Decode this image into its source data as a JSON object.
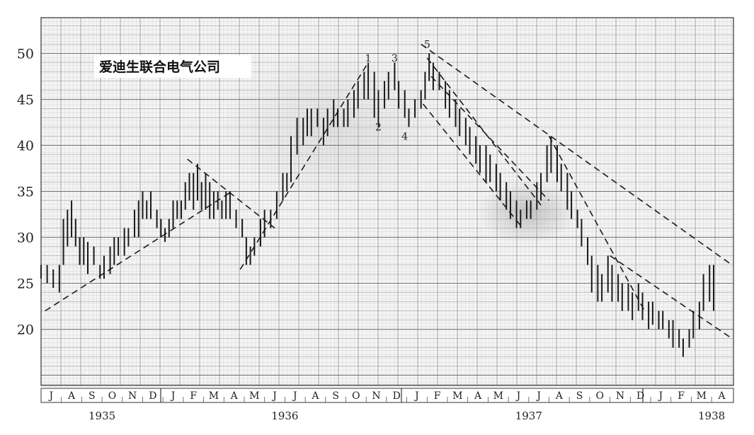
{
  "chart_data": {
    "type": "bar",
    "subtype": "high-low price bars",
    "title": "爱迪生联合电气公司",
    "ylim": [
      14,
      54
    ],
    "y_ticks": [
      20,
      25,
      30,
      35,
      40,
      45,
      50
    ],
    "x_month_labels": [
      "J",
      "A",
      "S",
      "O",
      "N",
      "D",
      "J",
      "F",
      "M",
      "A",
      "M",
      "J",
      "J",
      "A",
      "S",
      "O",
      "N",
      "D",
      "J",
      "F",
      "M",
      "A",
      "M",
      "J",
      "J",
      "A",
      "S",
      "O",
      "N",
      "D",
      "J",
      "F",
      "M",
      "A"
    ],
    "x_year_labels": [
      {
        "label": "1935",
        "month_index": 2.5
      },
      {
        "label": "1936",
        "month_index": 11.5
      },
      {
        "label": "1937",
        "month_index": 23.5
      },
      {
        "label": "1938",
        "month_index": 32.5
      }
    ],
    "bars": [
      [
        0.0,
        27,
        25.5
      ],
      [
        0.3,
        27,
        25
      ],
      [
        0.6,
        26.5,
        24.5
      ],
      [
        0.9,
        27,
        24
      ],
      [
        1.1,
        32,
        27
      ],
      [
        1.3,
        33,
        29
      ],
      [
        1.5,
        34,
        30
      ],
      [
        1.7,
        32,
        29
      ],
      [
        1.9,
        30,
        27
      ],
      [
        2.1,
        30,
        27
      ],
      [
        2.3,
        29.5,
        26
      ],
      [
        2.6,
        29,
        27
      ],
      [
        2.9,
        27,
        25.5
      ],
      [
        3.1,
        28,
        25.5
      ],
      [
        3.4,
        29,
        26
      ],
      [
        3.6,
        30,
        27
      ],
      [
        3.8,
        30,
        28
      ],
      [
        4.1,
        31,
        28
      ],
      [
        4.3,
        31,
        29
      ],
      [
        4.6,
        33,
        30
      ],
      [
        4.8,
        34,
        30
      ],
      [
        5.0,
        35,
        32
      ],
      [
        5.2,
        34,
        32
      ],
      [
        5.4,
        35,
        32
      ],
      [
        5.7,
        33,
        31
      ],
      [
        5.9,
        32,
        30
      ],
      [
        6.1,
        31,
        29.5
      ],
      [
        6.3,
        32,
        30
      ],
      [
        6.5,
        34,
        31
      ],
      [
        6.7,
        34,
        32
      ],
      [
        6.9,
        34,
        32
      ],
      [
        7.1,
        36,
        33
      ],
      [
        7.3,
        37,
        34
      ],
      [
        7.5,
        37,
        33
      ],
      [
        7.7,
        38,
        34
      ],
      [
        7.9,
        36,
        33
      ],
      [
        8.1,
        37,
        33
      ],
      [
        8.3,
        36,
        32
      ],
      [
        8.5,
        35,
        32
      ],
      [
        8.7,
        35,
        33
      ],
      [
        8.9,
        34,
        32
      ],
      [
        9.1,
        35,
        32
      ],
      [
        9.3,
        35,
        32
      ],
      [
        9.6,
        33,
        31
      ],
      [
        9.9,
        32,
        30
      ],
      [
        10.1,
        30,
        27
      ],
      [
        10.3,
        29,
        27
      ],
      [
        10.5,
        30,
        28
      ],
      [
        10.8,
        32,
        29
      ],
      [
        11.0,
        33,
        30
      ],
      [
        11.3,
        33,
        31
      ],
      [
        11.6,
        35,
        32
      ],
      [
        11.9,
        37,
        34
      ],
      [
        12.1,
        37,
        35
      ],
      [
        12.3,
        41,
        36
      ],
      [
        12.6,
        43,
        39
      ],
      [
        12.9,
        43,
        40
      ],
      [
        13.1,
        44,
        41
      ],
      [
        13.3,
        44,
        41
      ],
      [
        13.6,
        44,
        42
      ],
      [
        13.9,
        43,
        40
      ],
      [
        14.1,
        44,
        41
      ],
      [
        14.4,
        45,
        42
      ],
      [
        14.6,
        44,
        42
      ],
      [
        14.9,
        44,
        42
      ],
      [
        15.1,
        45,
        42
      ],
      [
        15.4,
        46,
        43
      ],
      [
        15.6,
        47,
        44
      ],
      [
        15.9,
        48,
        45
      ],
      [
        16.1,
        49,
        45
      ],
      [
        16.4,
        48,
        43
      ],
      [
        16.6,
        46,
        42
      ],
      [
        16.9,
        47,
        44
      ],
      [
        17.1,
        48,
        45
      ],
      [
        17.4,
        49,
        46
      ],
      [
        17.6,
        47,
        44
      ],
      [
        17.9,
        46,
        43
      ],
      [
        18.1,
        44,
        42
      ],
      [
        18.4,
        45,
        43
      ],
      [
        18.7,
        46,
        44
      ],
      [
        18.9,
        48,
        45
      ],
      [
        19.1,
        50,
        47
      ],
      [
        19.3,
        49,
        46
      ],
      [
        19.6,
        48,
        46
      ],
      [
        19.9,
        47,
        44
      ],
      [
        20.1,
        46,
        43
      ],
      [
        20.4,
        45,
        42
      ],
      [
        20.6,
        44,
        41
      ],
      [
        20.9,
        43,
        40
      ],
      [
        21.1,
        42,
        39
      ],
      [
        21.4,
        41,
        38
      ],
      [
        21.6,
        40,
        37
      ],
      [
        21.9,
        40,
        36
      ],
      [
        22.1,
        39,
        36
      ],
      [
        22.4,
        38,
        35
      ],
      [
        22.6,
        37,
        34
      ],
      [
        22.9,
        36,
        33
      ],
      [
        23.1,
        35,
        32
      ],
      [
        23.4,
        34,
        31
      ],
      [
        23.6,
        33,
        31
      ],
      [
        23.9,
        34,
        32
      ],
      [
        24.1,
        34,
        32
      ],
      [
        24.4,
        36,
        33
      ],
      [
        24.6,
        37,
        34
      ],
      [
        24.9,
        40,
        36
      ],
      [
        25.1,
        41,
        37
      ],
      [
        25.4,
        40,
        36
      ],
      [
        25.6,
        38,
        35
      ],
      [
        25.9,
        37,
        33
      ],
      [
        26.1,
        35,
        32
      ],
      [
        26.4,
        33,
        31
      ],
      [
        26.6,
        32,
        29
      ],
      [
        26.9,
        30,
        27
      ],
      [
        27.1,
        28,
        24
      ],
      [
        27.4,
        27,
        23
      ],
      [
        27.6,
        26,
        23
      ],
      [
        27.9,
        28,
        24
      ],
      [
        28.1,
        27,
        23
      ],
      [
        28.4,
        26,
        23
      ],
      [
        28.6,
        25,
        22
      ],
      [
        28.9,
        25,
        22
      ],
      [
        29.1,
        24,
        21
      ],
      [
        29.4,
        25,
        22
      ],
      [
        29.6,
        24,
        21
      ],
      [
        29.9,
        23,
        20
      ],
      [
        30.1,
        23,
        20.5
      ],
      [
        30.4,
        22,
        20
      ],
      [
        30.6,
        22,
        20
      ],
      [
        30.9,
        21,
        19
      ],
      [
        31.1,
        21,
        18
      ],
      [
        31.4,
        20,
        18
      ],
      [
        31.6,
        19,
        17
      ],
      [
        31.9,
        20,
        18
      ],
      [
        32.1,
        22,
        19
      ],
      [
        32.4,
        23,
        20
      ],
      [
        32.6,
        26,
        22
      ],
      [
        32.9,
        27,
        23
      ],
      [
        33.1,
        27,
        22
      ]
    ],
    "trendlines": [
      {
        "style": "dashed",
        "points": [
          [
            0.2,
            22
          ],
          [
            9.4,
            35
          ]
        ]
      },
      {
        "style": "dashed",
        "points": [
          [
            7.2,
            38.5
          ],
          [
            11.5,
            31
          ]
        ]
      },
      {
        "style": "dashed",
        "points": [
          [
            9.8,
            26.5
          ],
          [
            16.1,
            49
          ]
        ]
      },
      {
        "style": "dashed",
        "points": [
          [
            18.8,
            44.5
          ],
          [
            23.7,
            31
          ]
        ]
      },
      {
        "style": "dashed",
        "points": [
          [
            19.0,
            49.5
          ],
          [
            24.6,
            33.5
          ]
        ]
      },
      {
        "style": "dashed",
        "points": [
          [
            19.2,
            47.5
          ],
          [
            25.0,
            34
          ]
        ]
      },
      {
        "style": "dashed",
        "points": [
          [
            18.7,
            51
          ],
          [
            34.0,
            27
          ]
        ]
      },
      {
        "style": "dashed",
        "points": [
          [
            25.0,
            41
          ],
          [
            29.7,
            22
          ]
        ]
      },
      {
        "style": "dashed",
        "points": [
          [
            28.0,
            28
          ],
          [
            34.0,
            19
          ]
        ]
      }
    ],
    "annotations": [
      {
        "label": "1",
        "month_index": 16.1,
        "value": 49.5
      },
      {
        "label": "2",
        "month_index": 16.6,
        "value": 42.0
      },
      {
        "label": "3",
        "month_index": 17.4,
        "value": 49.5
      },
      {
        "label": "4",
        "month_index": 17.9,
        "value": 41.0
      },
      {
        "label": "5",
        "month_index": 19.0,
        "value": 51.0
      }
    ]
  }
}
